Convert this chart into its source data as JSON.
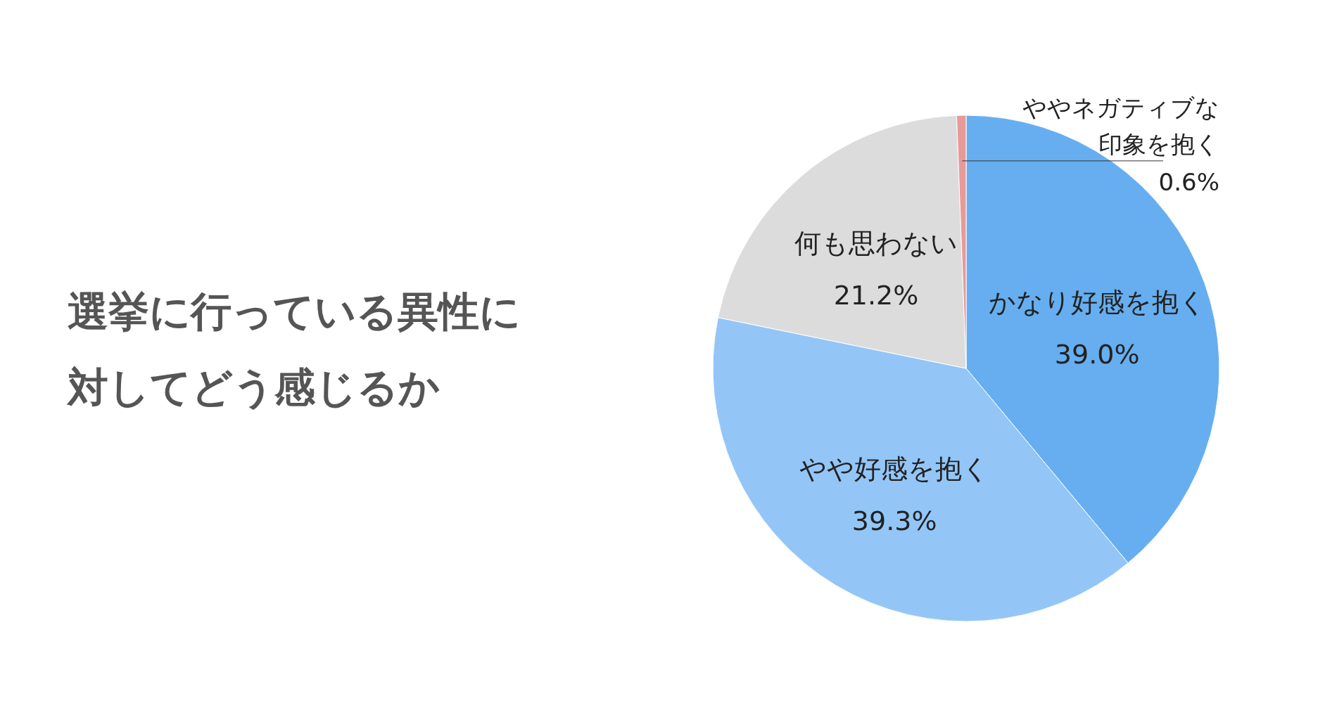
{
  "chart_data": {
    "type": "pie",
    "title": "選挙に行っている異性に対してどう感じるか",
    "categories": [
      "かなり好感を抱く",
      "やや好感を抱く",
      "何も思わない",
      "ややネガティブな印象を抱く"
    ],
    "values": [
      39.0,
      39.3,
      21.2,
      0.6
    ],
    "colors": [
      "#66aef0",
      "#93c6f7",
      "#dcdcdc",
      "#e89a9a"
    ],
    "value_labels": [
      "39.0%",
      "39.3%",
      "21.2%",
      "0.6%"
    ]
  }
}
